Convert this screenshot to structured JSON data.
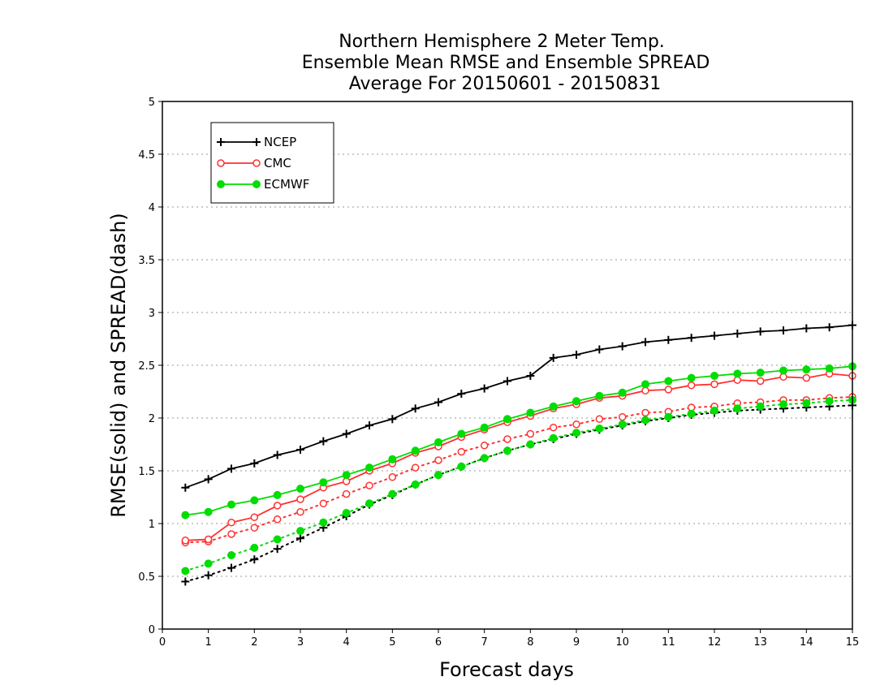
{
  "chart_data": {
    "type": "line",
    "title_lines": [
      "Northern Hemisphere 2 Meter Temp.",
      "Ensemble Mean RMSE and Ensemble SPREAD",
      "Average For 20150601 - 20150831"
    ],
    "xlabel": "Forecast days",
    "ylabel": "RMSE(solid) and SPREAD(dash)",
    "xlim": [
      0,
      15
    ],
    "ylim": [
      0,
      5
    ],
    "xticks": [
      "0",
      "1",
      "2",
      "3",
      "4",
      "5",
      "6",
      "7",
      "8",
      "9",
      "10",
      "11",
      "12",
      "13",
      "14",
      "15"
    ],
    "yticks": [
      "0",
      "0.5",
      "1",
      "1.5",
      "2",
      "2.5",
      "3",
      "3.5",
      "4",
      "4.5",
      "5"
    ],
    "grid": "horizontal dotted",
    "legend_position": "top-left",
    "x": [
      0.5,
      1,
      1.5,
      2,
      2.5,
      3,
      3.5,
      4,
      4.5,
      5,
      5.5,
      6,
      6.5,
      7,
      7.5,
      8,
      8.5,
      9,
      9.5,
      10,
      10.5,
      11,
      11.5,
      12,
      12.5,
      13,
      13.5,
      14,
      14.5,
      15
    ],
    "series": [
      {
        "name": "NCEP",
        "color": "#000000",
        "marker": "plus",
        "rmse": [
          1.34,
          1.42,
          1.52,
          1.57,
          1.65,
          1.7,
          1.78,
          1.85,
          1.93,
          1.99,
          2.09,
          2.15,
          2.23,
          2.28,
          2.35,
          2.4,
          2.57,
          2.6,
          2.65,
          2.68,
          2.72,
          2.74,
          2.76,
          2.78,
          2.8,
          2.82,
          2.83,
          2.85,
          2.86,
          2.88
        ],
        "spread": [
          0.45,
          0.51,
          0.58,
          0.66,
          0.76,
          0.86,
          0.96,
          1.07,
          1.18,
          1.27,
          1.37,
          1.46,
          1.54,
          1.62,
          1.69,
          1.75,
          1.8,
          1.85,
          1.89,
          1.93,
          1.97,
          2.0,
          2.03,
          2.05,
          2.07,
          2.08,
          2.09,
          2.1,
          2.11,
          2.12
        ]
      },
      {
        "name": "CMC",
        "color": "#ff3030",
        "marker": "open-circle",
        "rmse": [
          0.84,
          0.85,
          1.01,
          1.06,
          1.17,
          1.23,
          1.34,
          1.4,
          1.5,
          1.57,
          1.67,
          1.73,
          1.82,
          1.89,
          1.96,
          2.02,
          2.09,
          2.13,
          2.19,
          2.21,
          2.26,
          2.27,
          2.31,
          2.32,
          2.36,
          2.35,
          2.39,
          2.38,
          2.42,
          2.4
        ],
        "spread": [
          0.82,
          0.83,
          0.9,
          0.96,
          1.04,
          1.11,
          1.19,
          1.28,
          1.36,
          1.44,
          1.53,
          1.6,
          1.68,
          1.74,
          1.8,
          1.85,
          1.91,
          1.94,
          1.99,
          2.01,
          2.05,
          2.06,
          2.1,
          2.11,
          2.14,
          2.15,
          2.17,
          2.17,
          2.19,
          2.2
        ]
      },
      {
        "name": "ECMWF",
        "color": "#00dd00",
        "marker": "filled-circle",
        "rmse": [
          1.08,
          1.11,
          1.18,
          1.22,
          1.27,
          1.33,
          1.39,
          1.46,
          1.53,
          1.61,
          1.69,
          1.77,
          1.85,
          1.91,
          1.99,
          2.05,
          2.11,
          2.16,
          2.21,
          2.24,
          2.32,
          2.35,
          2.38,
          2.4,
          2.42,
          2.43,
          2.45,
          2.46,
          2.47,
          2.49
        ],
        "spread": [
          0.55,
          0.62,
          0.7,
          0.77,
          0.85,
          0.93,
          1.01,
          1.1,
          1.19,
          1.28,
          1.37,
          1.46,
          1.54,
          1.62,
          1.69,
          1.75,
          1.81,
          1.86,
          1.9,
          1.94,
          1.98,
          2.01,
          2.04,
          2.07,
          2.09,
          2.11,
          2.13,
          2.14,
          2.16,
          2.17
        ]
      }
    ]
  }
}
